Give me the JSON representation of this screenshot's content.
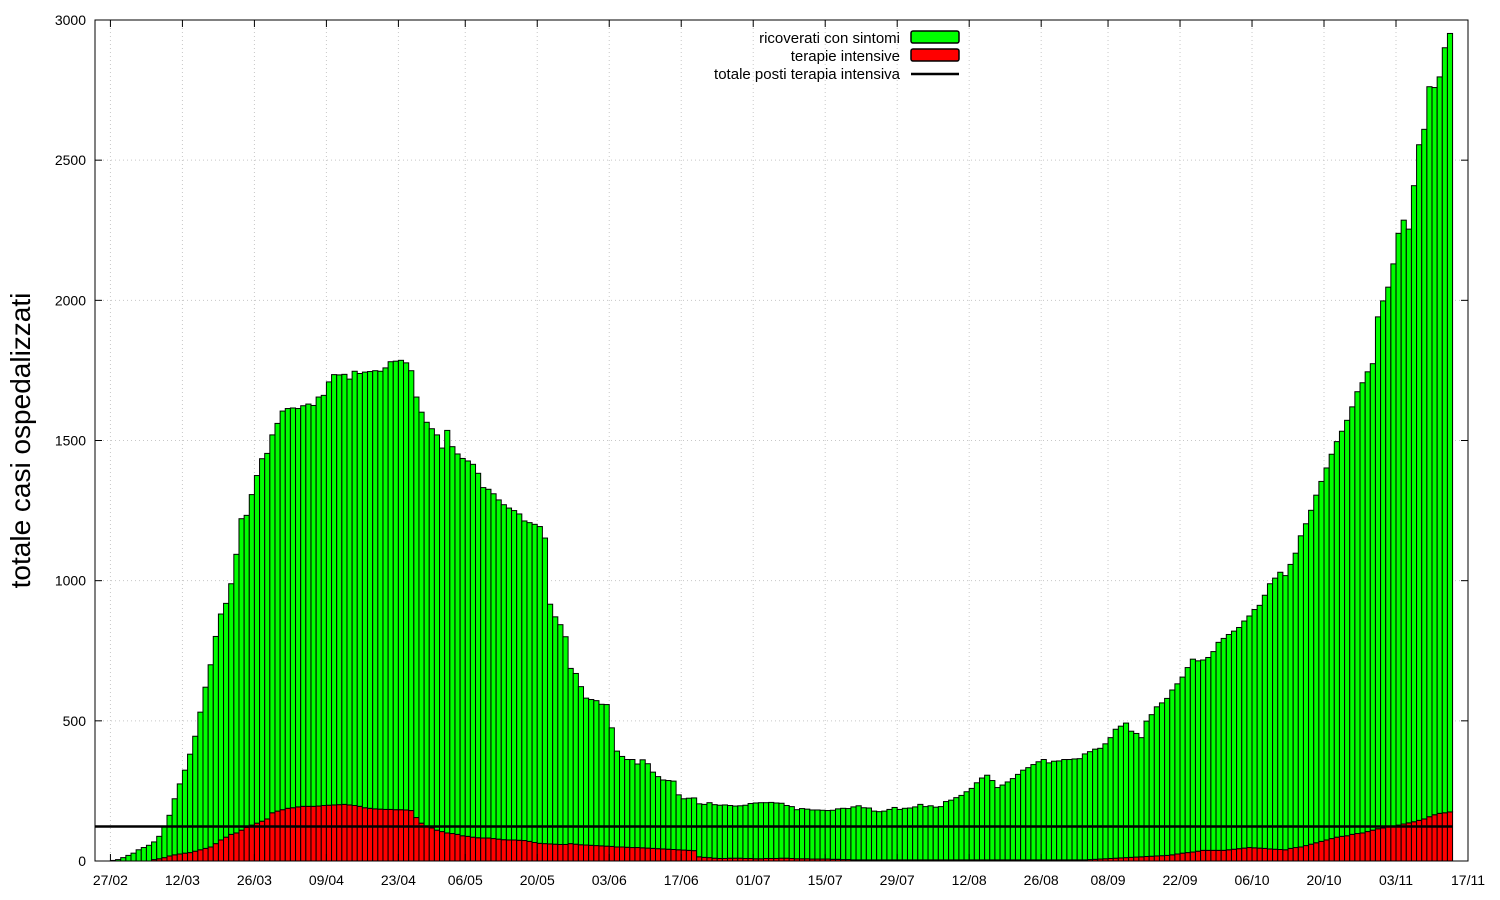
{
  "chart_data": {
    "type": "bar",
    "stacked": true,
    "title": "",
    "xlabel": "",
    "ylabel": "totale casi ospedalizzati",
    "ylim": [
      0,
      3000
    ],
    "yticks": [
      "0",
      "500",
      "1000",
      "1500",
      "2000",
      "2500",
      "3000"
    ],
    "xticks": [
      "27/02",
      "12/03",
      "26/03",
      "09/04",
      "23/04",
      "06/05",
      "20/05",
      "03/06",
      "17/06",
      "01/07",
      "15/07",
      "29/07",
      "12/08",
      "26/08",
      "08/09",
      "22/09",
      "06/10",
      "20/10",
      "03/11",
      "17/11"
    ],
    "x_range": [
      "2020-02-24",
      "2020-11-17"
    ],
    "grid": true,
    "legend_position": "top-center",
    "start_date": "2020-02-24",
    "series": [
      {
        "name": "ricoverati con sintomi",
        "color": "#00ff00",
        "values": [
          0,
          0,
          0,
          2,
          5,
          12,
          20,
          28,
          40,
          48,
          56,
          63,
          80,
          110,
          145,
          200,
          250,
          296,
          351,
          410,
          491,
          575,
          650,
          739,
          806,
          834,
          894,
          994,
          1111,
          1113,
          1179,
          1240,
          1293,
          1304,
          1348,
          1383,
          1422,
          1426,
          1426,
          1421,
          1429,
          1435,
          1430,
          1459,
          1463,
          1510,
          1535,
          1533,
          1534,
          1519,
          1549,
          1544,
          1554,
          1558,
          1563,
          1562,
          1575,
          1597,
          1600,
          1603,
          1595,
          1569,
          1500,
          1466,
          1440,
          1424,
          1410,
          1368,
          1436,
          1380,
          1357,
          1346,
          1339,
          1330,
          1300,
          1250,
          1244,
          1230,
          1210,
          1195,
          1184,
          1175,
          1164,
          1140,
          1137,
          1135,
          1130,
          1090,
          855,
          811,
          784,
          741,
          625,
          609,
          564,
          524,
          520,
          517,
          505,
          505,
          423,
          342,
          323,
          313,
          314,
          298,
          314,
          301,
          272,
          257,
          246,
          245,
          244,
          196,
          183,
          186,
          188,
          189,
          189,
          196,
          191,
          190,
          191,
          188,
          186,
          187,
          190,
          196,
          199,
          200,
          199,
          200,
          198,
          196,
          188,
          185,
          175,
          179,
          177,
          175,
          175,
          174,
          173,
          175,
          180,
          183,
          182,
          189,
          193,
          186,
          185,
          174,
          172,
          174,
          180,
          187,
          180,
          184,
          185,
          189,
          198,
          190,
          193,
          188,
          190,
          208,
          213,
          222,
          230,
          243,
          255,
          275,
          292,
          302,
          283,
          258,
          267,
          278,
          290,
          305,
          320,
          329,
          340,
          350,
          358,
          346,
          352,
          353,
          358,
          358,
          360,
          361,
          378,
          385,
          393,
          395,
          410,
          431,
          460,
          470,
          480,
          450,
          441,
          425,
          483,
          505,
          532,
          545,
          560,
          588,
          607,
          628,
          660,
          688,
          679,
          679,
          688,
          709,
          742,
          756,
          768,
          778,
          789,
          810,
          826,
          850,
          866,
          903,
          946,
          967,
          989,
          978,
          1013,
          1050,
          1110,
          1148,
          1191,
          1240,
          1284,
          1327,
          1371,
          1411,
          1445,
          1482,
          1525,
          1576,
          1606,
          1640,
          1664,
          1826,
          1880,
          1925,
          2005,
          2111,
          2154,
          2118,
          2269,
          2410,
          2460,
          2604,
          2594,
          2627,
          2729,
          2777
        ]
      },
      {
        "name": "terapie intensive",
        "color": "#ff0000",
        "values": [
          0,
          0,
          0,
          0,
          0,
          0,
          0,
          0,
          0,
          0,
          0,
          5,
          8,
          12,
          18,
          22,
          25,
          28,
          30,
          35,
          40,
          45,
          50,
          62,
          75,
          85,
          95,
          100,
          110,
          120,
          128,
          135,
          142,
          150,
          172,
          178,
          183,
          188,
          190,
          193,
          195,
          195,
          195,
          196,
          198,
          199,
          200,
          201,
          202,
          200,
          198,
          195,
          190,
          188,
          186,
          185,
          184,
          184,
          183,
          183,
          182,
          180,
          155,
          135,
          125,
          118,
          110,
          105,
          100,
          98,
          95,
          90,
          88,
          85,
          83,
          82,
          82,
          80,
          78,
          76,
          75,
          75,
          74,
          73,
          70,
          66,
          63,
          62,
          61,
          60,
          59,
          59,
          62,
          60,
          58,
          57,
          56,
          55,
          54,
          53,
          52,
          50,
          50,
          49,
          48,
          48,
          47,
          46,
          45,
          44,
          43,
          42,
          41,
          40,
          39,
          38,
          37,
          15,
          13,
          12,
          10,
          9,
          9,
          10,
          10,
          10,
          9,
          9,
          8,
          8,
          9,
          9,
          9,
          10,
          10,
          9,
          8,
          8,
          8,
          7,
          7,
          7,
          7,
          6,
          6,
          5,
          5,
          4,
          4,
          4,
          4,
          4,
          4,
          4,
          4,
          4,
          4,
          4,
          4,
          4,
          4,
          4,
          4,
          4,
          4,
          4,
          4,
          4,
          4,
          4,
          4,
          4,
          4,
          4,
          4,
          4,
          4,
          4,
          4,
          4,
          4,
          4,
          4,
          4,
          4,
          4,
          4,
          4,
          4,
          4,
          4,
          4,
          4,
          5,
          6,
          7,
          8,
          9,
          10,
          11,
          12,
          13,
          14,
          15,
          16,
          17,
          18,
          19,
          20,
          22,
          25,
          28,
          30,
          32,
          35,
          38,
          38,
          38,
          38,
          38,
          40,
          42,
          44,
          46,
          48,
          47,
          46,
          45,
          43,
          42,
          41,
          40,
          45,
          48,
          50,
          55,
          60,
          65,
          70,
          75,
          80,
          85,
          88,
          90,
          95,
          98,
          100,
          105,
          110,
          115,
          118,
          122,
          125,
          128,
          132,
          136,
          140,
          145,
          150,
          158,
          165,
          170,
          172,
          175,
          180,
          185,
          190,
          195,
          200,
          205,
          210,
          222,
          228,
          236
        ]
      }
    ],
    "reference_line": {
      "name": "totale posti terapia intensiva",
      "value": 123,
      "color": "#000000"
    }
  }
}
